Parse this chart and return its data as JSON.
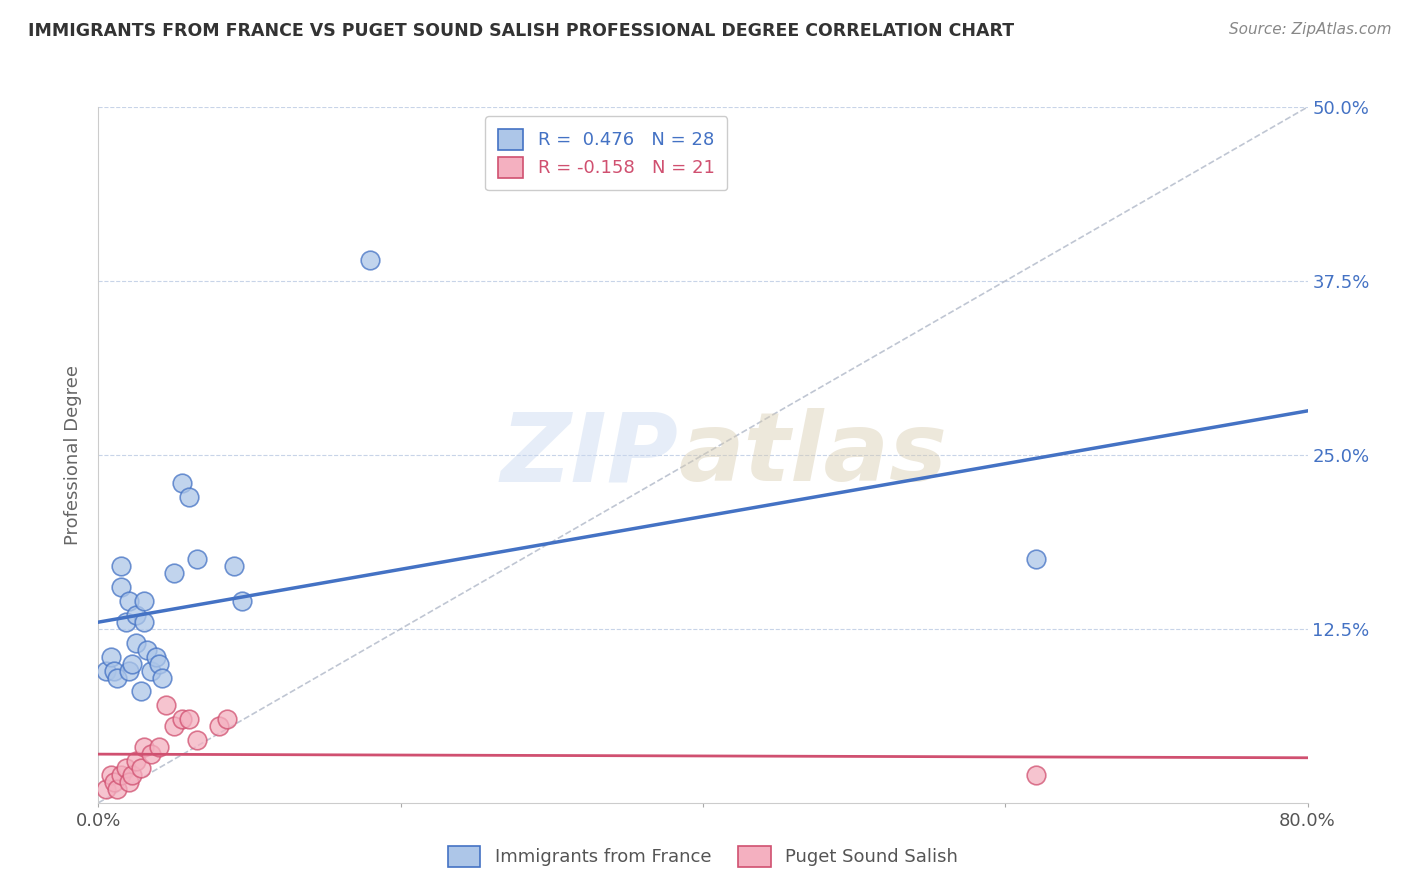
{
  "title": "IMMIGRANTS FROM FRANCE VS PUGET SOUND SALISH PROFESSIONAL DEGREE CORRELATION CHART",
  "source": "Source: ZipAtlas.com",
  "ylabel": "Professional Degree",
  "xlim": [
    0.0,
    0.8
  ],
  "ylim": [
    0.0,
    0.5
  ],
  "xticks": [
    0.0,
    0.2,
    0.4,
    0.6,
    0.8
  ],
  "xtick_labels": [
    "0.0%",
    "",
    "",
    "",
    "80.0%"
  ],
  "yticks": [
    0.0,
    0.125,
    0.25,
    0.375,
    0.5
  ],
  "ytick_labels_right": [
    "",
    "12.5%",
    "25.0%",
    "37.5%",
    "50.0%"
  ],
  "blue_R": 0.476,
  "blue_N": 28,
  "pink_R": -0.158,
  "pink_N": 21,
  "blue_color": "#adc6e8",
  "blue_edge_color": "#4472c4",
  "blue_line_color": "#4472c4",
  "pink_color": "#f4b0c0",
  "pink_edge_color": "#d05070",
  "pink_line_color": "#d05070",
  "dashed_line_color": "#b0b8c8",
  "grid_color": "#c8d4e8",
  "legend_label_blue": "Immigrants from France",
  "legend_label_pink": "Puget Sound Salish",
  "blue_scatter_x": [
    0.005,
    0.008,
    0.01,
    0.012,
    0.015,
    0.015,
    0.018,
    0.02,
    0.02,
    0.022,
    0.025,
    0.025,
    0.028,
    0.03,
    0.03,
    0.032,
    0.035,
    0.038,
    0.04,
    0.042,
    0.05,
    0.055,
    0.06,
    0.065,
    0.09,
    0.095,
    0.18,
    0.62
  ],
  "blue_scatter_y": [
    0.095,
    0.105,
    0.095,
    0.09,
    0.155,
    0.17,
    0.13,
    0.095,
    0.145,
    0.1,
    0.115,
    0.135,
    0.08,
    0.13,
    0.145,
    0.11,
    0.095,
    0.105,
    0.1,
    0.09,
    0.165,
    0.23,
    0.22,
    0.175,
    0.17,
    0.145,
    0.39,
    0.175
  ],
  "pink_scatter_x": [
    0.005,
    0.008,
    0.01,
    0.012,
    0.015,
    0.018,
    0.02,
    0.022,
    0.025,
    0.028,
    0.03,
    0.035,
    0.04,
    0.045,
    0.05,
    0.055,
    0.06,
    0.065,
    0.08,
    0.085,
    0.62
  ],
  "pink_scatter_y": [
    0.01,
    0.02,
    0.015,
    0.01,
    0.02,
    0.025,
    0.015,
    0.02,
    0.03,
    0.025,
    0.04,
    0.035,
    0.04,
    0.07,
    0.055,
    0.06,
    0.06,
    0.045,
    0.055,
    0.06,
    0.02
  ]
}
